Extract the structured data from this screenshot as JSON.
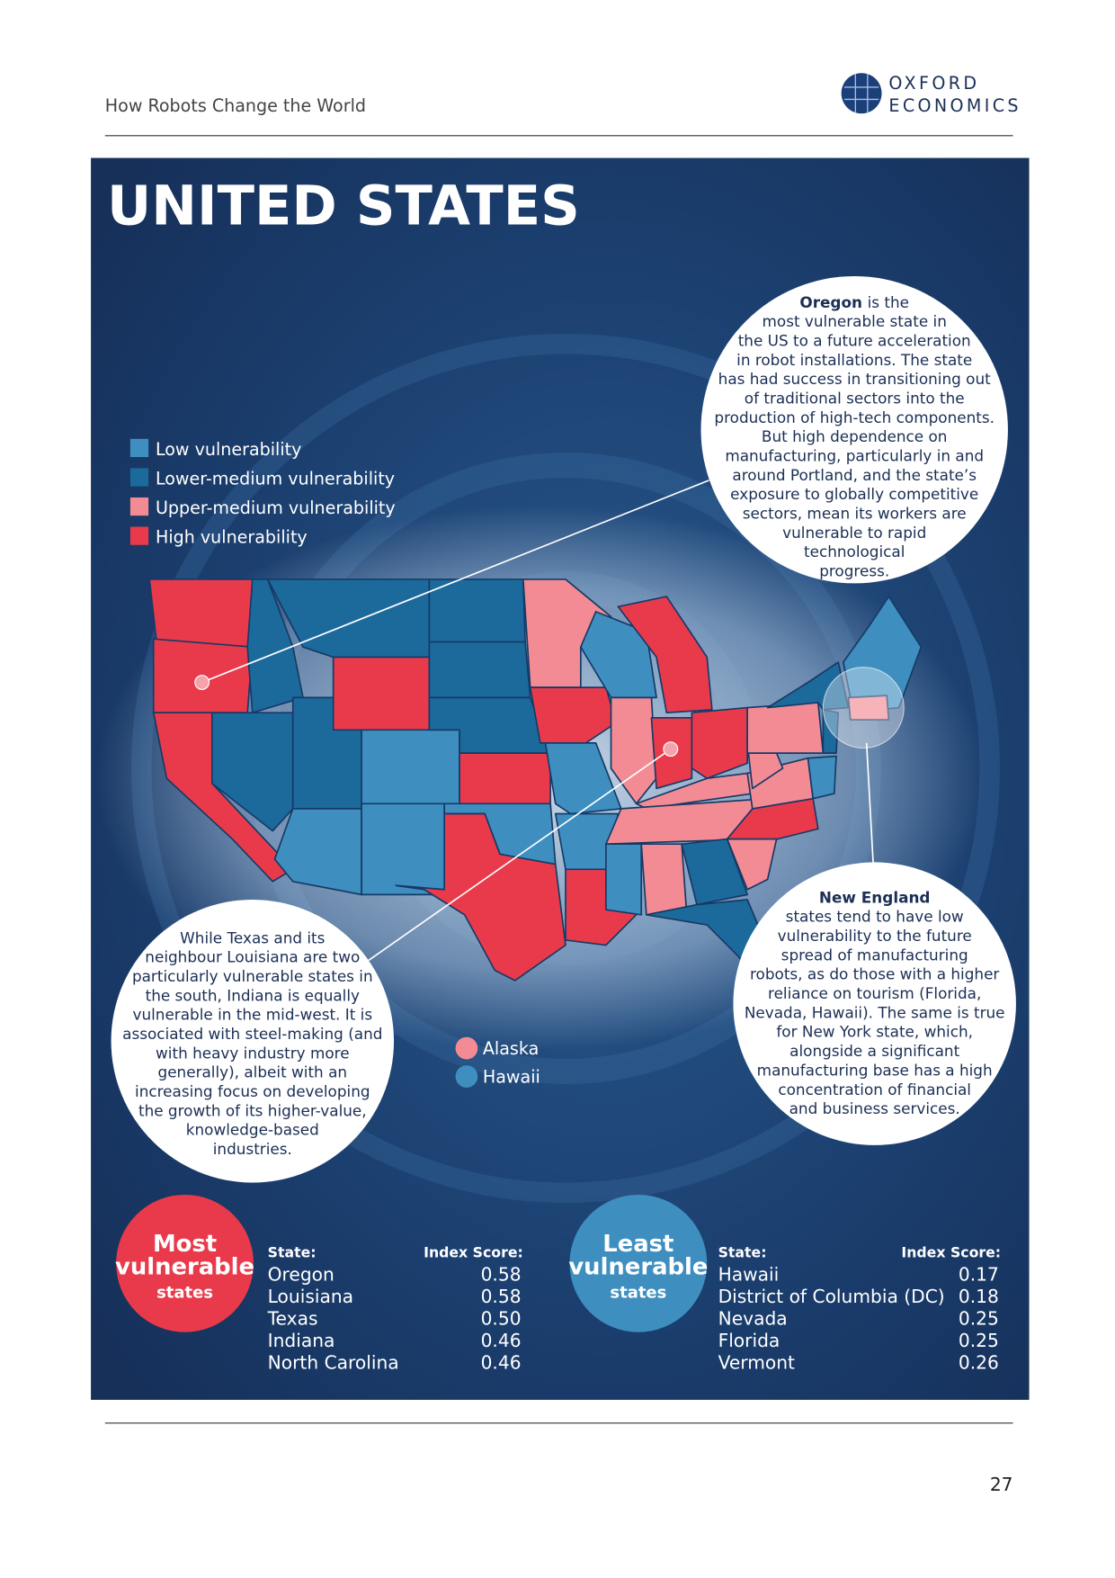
{
  "header": {
    "title": "How Robots Change the World",
    "logo": [
      "OXFORD",
      "ECONOMICS"
    ]
  },
  "panel": {
    "title": "UNITED STATES"
  },
  "legend": [
    {
      "label": "Low vulnerability",
      "color": "#3e8fc0"
    },
    {
      "label": "Lower-medium vulnerability",
      "color": "#1c6a9c"
    },
    {
      "label": "Upper-medium vulnerability",
      "color": "#f28b94"
    },
    {
      "label": "High vulnerability",
      "color": "#e93a4b"
    }
  ],
  "insets": [
    {
      "label": "Alaska",
      "color": "#f28b94"
    },
    {
      "label": "Hawaii",
      "color": "#3e8fc0"
    }
  ],
  "callouts": {
    "oregon": {
      "lead": "Oregon",
      "lines": [
        "is the",
        "most vulnerable state in",
        "the US to a future acceleration",
        "in robot installations. The state",
        "has had success in transitioning out",
        "of traditional sectors into the",
        "production of high-tech components.",
        "But high dependence on",
        "manufacturing, particularly in and",
        "around Portland, and the state’s",
        "exposure to globally competitive",
        "sectors, mean its workers are",
        "vulnerable to rapid",
        "technological",
        "progress."
      ]
    },
    "texas": {
      "lines": [
        "While Texas and its",
        "neighbour Louisiana are two",
        "particularly vulnerable states in",
        "the south, Indiana is equally",
        "vulnerable in the mid-west. It is",
        "associated with steel-making (and",
        "with heavy industry more",
        "generally), albeit with an",
        "increasing focus on developing",
        "the growth of its higher-value,",
        "knowledge-based",
        "industries."
      ]
    },
    "new_england": {
      "lead": "New England",
      "lines": [
        "states tend to have low",
        "vulnerability to the future",
        "spread of manufacturing",
        "robots, as do those with a higher",
        "reliance on tourism (Florida,",
        "Nevada, Hawaii). The same is true",
        "for New York state, which,",
        "alongside a significant",
        "manufacturing base has a high",
        "concentration of financial",
        "and business services."
      ]
    }
  },
  "most": {
    "title": [
      "Most",
      "vulnerable",
      "states"
    ],
    "columns": [
      "State:",
      "Index Score:"
    ],
    "rows": [
      [
        "Oregon",
        "0.58"
      ],
      [
        "Louisiana",
        "0.58"
      ],
      [
        "Texas",
        "0.50"
      ],
      [
        "Indiana",
        "0.46"
      ],
      [
        "North Carolina",
        "0.46"
      ]
    ]
  },
  "least": {
    "title": [
      "Least",
      "vulnerable",
      "states"
    ],
    "columns": [
      "State:",
      "Index Score:"
    ],
    "rows": [
      [
        "Hawaii",
        "0.17"
      ],
      [
        "District of Columbia (DC)",
        "0.18"
      ],
      [
        "Nevada",
        "0.25"
      ],
      [
        "Florida",
        "0.25"
      ],
      [
        "Vermont",
        "0.26"
      ]
    ]
  },
  "page_number": "27"
}
